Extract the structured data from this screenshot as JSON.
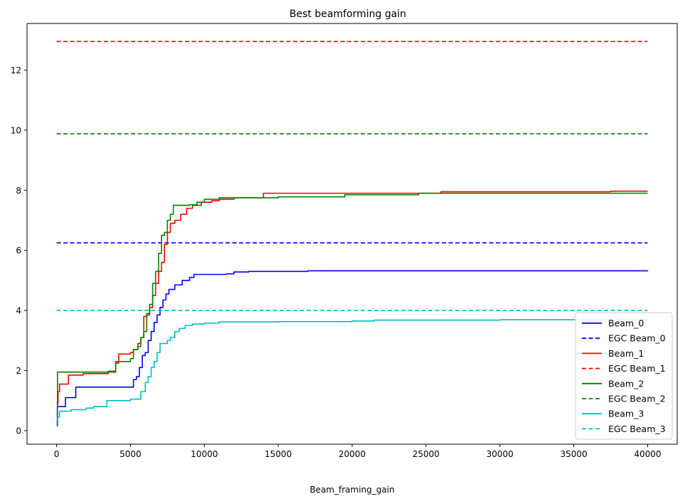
{
  "chart_data": {
    "type": "line",
    "title": "Best beamforming gain",
    "xlabel": "Beam_framing_gain",
    "ylabel": "",
    "xlim": [
      -2000,
      42000
    ],
    "ylim": [
      -0.45,
      13.55
    ],
    "xticks": [
      0,
      5000,
      10000,
      15000,
      20000,
      25000,
      30000,
      35000,
      40000
    ],
    "yticks": [
      0,
      2,
      4,
      6,
      8,
      10,
      12
    ],
    "grid": false,
    "legend_position": "lower-right",
    "series": [
      {
        "name": "Beam_0",
        "color": "#0000ff",
        "style": "solid",
        "points": [
          [
            0,
            0.2
          ],
          [
            50,
            0.8
          ],
          [
            500,
            0.8
          ],
          [
            600,
            1.1
          ],
          [
            1200,
            1.1
          ],
          [
            1300,
            1.45
          ],
          [
            5000,
            1.45
          ],
          [
            5200,
            1.7
          ],
          [
            5400,
            1.8
          ],
          [
            5600,
            2.1
          ],
          [
            5800,
            2.5
          ],
          [
            6000,
            2.6
          ],
          [
            6200,
            3.0
          ],
          [
            6400,
            3.3
          ],
          [
            6600,
            3.6
          ],
          [
            6800,
            3.85
          ],
          [
            7000,
            4.1
          ],
          [
            7200,
            4.35
          ],
          [
            7400,
            4.55
          ],
          [
            7600,
            4.7
          ],
          [
            8000,
            4.85
          ],
          [
            8500,
            5.0
          ],
          [
            9000,
            5.1
          ],
          [
            9300,
            5.2
          ],
          [
            11500,
            5.22
          ],
          [
            12000,
            5.28
          ],
          [
            13000,
            5.3
          ],
          [
            17000,
            5.32
          ],
          [
            40000,
            5.33
          ]
        ]
      },
      {
        "name": "EGC Beam_0",
        "color": "#0000ff",
        "style": "dashed",
        "points": [
          [
            0,
            6.25
          ],
          [
            40000,
            6.25
          ]
        ]
      },
      {
        "name": "Beam_1",
        "color": "#ff0000",
        "style": "solid",
        "points": [
          [
            0,
            0.9
          ],
          [
            100,
            1.3
          ],
          [
            200,
            1.55
          ],
          [
            700,
            1.55
          ],
          [
            800,
            1.85
          ],
          [
            1800,
            1.9
          ],
          [
            3500,
            1.95
          ],
          [
            4000,
            2.25
          ],
          [
            4200,
            2.55
          ],
          [
            5000,
            2.6
          ],
          [
            5200,
            2.7
          ],
          [
            5500,
            2.9
          ],
          [
            5700,
            3.1
          ],
          [
            5900,
            3.8
          ],
          [
            6100,
            3.85
          ],
          [
            6300,
            4.1
          ],
          [
            6500,
            4.5
          ],
          [
            6700,
            4.9
          ],
          [
            6900,
            5.3
          ],
          [
            7100,
            5.6
          ],
          [
            7300,
            6.2
          ],
          [
            7500,
            6.6
          ],
          [
            7700,
            6.9
          ],
          [
            8000,
            7.0
          ],
          [
            8400,
            7.2
          ],
          [
            8800,
            7.4
          ],
          [
            9200,
            7.5
          ],
          [
            9800,
            7.6
          ],
          [
            10500,
            7.65
          ],
          [
            11000,
            7.7
          ],
          [
            12000,
            7.75
          ],
          [
            14000,
            7.9
          ],
          [
            20000,
            7.9
          ],
          [
            26000,
            7.95
          ],
          [
            37500,
            7.97
          ],
          [
            40000,
            7.97
          ]
        ]
      },
      {
        "name": "EGC Beam_1",
        "color": "#ff0000",
        "style": "dashed",
        "points": [
          [
            0,
            12.95
          ],
          [
            40000,
            12.95
          ]
        ]
      },
      {
        "name": "Beam_2",
        "color": "#008000",
        "style": "solid",
        "points": [
          [
            0,
            0.3
          ],
          [
            60,
            1.95
          ],
          [
            3500,
            1.98
          ],
          [
            4000,
            2.3
          ],
          [
            5000,
            2.4
          ],
          [
            5200,
            2.7
          ],
          [
            5500,
            2.8
          ],
          [
            5700,
            3.1
          ],
          [
            5900,
            3.3
          ],
          [
            6100,
            3.9
          ],
          [
            6300,
            4.2
          ],
          [
            6500,
            4.9
          ],
          [
            6700,
            5.3
          ],
          [
            6900,
            5.9
          ],
          [
            7100,
            6.5
          ],
          [
            7300,
            6.6
          ],
          [
            7500,
            7.0
          ],
          [
            7700,
            7.2
          ],
          [
            7900,
            7.5
          ],
          [
            9000,
            7.52
          ],
          [
            9500,
            7.6
          ],
          [
            10000,
            7.7
          ],
          [
            11000,
            7.75
          ],
          [
            15000,
            7.78
          ],
          [
            19500,
            7.85
          ],
          [
            24500,
            7.9
          ],
          [
            40000,
            7.9
          ]
        ]
      },
      {
        "name": "EGC Beam_2",
        "color": "#008000",
        "style": "dashed",
        "points": [
          [
            0,
            9.88
          ],
          [
            40000,
            9.88
          ]
        ]
      },
      {
        "name": "Beam_3",
        "color": "#00bfbf",
        "style": "solid",
        "points": [
          [
            0,
            0.15
          ],
          [
            80,
            0.45
          ],
          [
            200,
            0.65
          ],
          [
            1000,
            0.7
          ],
          [
            2000,
            0.75
          ],
          [
            2500,
            0.8
          ],
          [
            3400,
            1.0
          ],
          [
            5000,
            1.05
          ],
          [
            5700,
            1.3
          ],
          [
            6000,
            1.6
          ],
          [
            6200,
            1.8
          ],
          [
            6400,
            2.1
          ],
          [
            6600,
            2.3
          ],
          [
            6800,
            2.6
          ],
          [
            7000,
            2.9
          ],
          [
            7500,
            3.0
          ],
          [
            7700,
            3.1
          ],
          [
            8000,
            3.3
          ],
          [
            8300,
            3.4
          ],
          [
            8700,
            3.5
          ],
          [
            9200,
            3.55
          ],
          [
            10000,
            3.58
          ],
          [
            11000,
            3.62
          ],
          [
            15000,
            3.63
          ],
          [
            20000,
            3.65
          ],
          [
            21500,
            3.68
          ],
          [
            30000,
            3.69
          ],
          [
            40000,
            3.7
          ]
        ]
      },
      {
        "name": "EGC Beam_3",
        "color": "#00bfbf",
        "style": "dashed",
        "points": [
          [
            0,
            4.0
          ],
          [
            40000,
            4.0
          ]
        ]
      }
    ]
  }
}
